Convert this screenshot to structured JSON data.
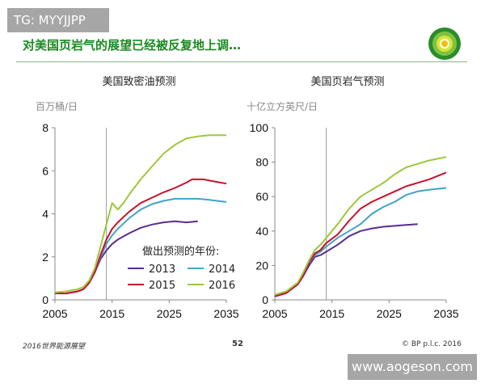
{
  "watermark_top": "TG: MYYJJPP",
  "watermark_bottom": "www.aogeson.com",
  "slide_title": "对美国页岩气的展望已经被反复地上调…",
  "footer": {
    "left": "2016世界能源展望",
    "page": "52",
    "right": "© BP p.l.c. 2016"
  },
  "colors": {
    "2013": "#5b2c8f",
    "2014": "#3fa4c8",
    "2015": "#c8102e",
    "2016": "#9dc73a",
    "title_green": "#1a8a22"
  },
  "chart_data": [
    {
      "type": "line",
      "title": "美国致密油预测",
      "ylabel": "百万桶/日",
      "xlabel": "",
      "xlim": [
        2005,
        2035
      ],
      "ylim": [
        0,
        8
      ],
      "xticks": [
        "2005",
        "2015",
        "2025",
        "2035"
      ],
      "yticks": [
        "0",
        "2",
        "4",
        "6",
        "8"
      ],
      "vline": 2014,
      "legend": {
        "title": "做出预测的年份:",
        "position": "bottom-right"
      },
      "series": [
        {
          "name": "2013",
          "x": [
            2005,
            2007,
            2009,
            2010,
            2011,
            2012,
            2013,
            2014,
            2015,
            2016,
            2018,
            2020,
            2022,
            2024,
            2026,
            2028,
            2030
          ],
          "y": [
            0.3,
            0.3,
            0.4,
            0.5,
            0.8,
            1.3,
            1.9,
            2.3,
            2.6,
            2.8,
            3.1,
            3.35,
            3.5,
            3.6,
            3.65,
            3.6,
            3.65
          ]
        },
        {
          "name": "2014",
          "x": [
            2005,
            2007,
            2009,
            2010,
            2011,
            2012,
            2013,
            2014,
            2015,
            2016,
            2018,
            2020,
            2022,
            2024,
            2026,
            2028,
            2030,
            2032,
            2035
          ],
          "y": [
            0.3,
            0.3,
            0.4,
            0.5,
            0.8,
            1.3,
            2.0,
            2.6,
            3.0,
            3.3,
            3.8,
            4.2,
            4.45,
            4.6,
            4.7,
            4.7,
            4.7,
            4.65,
            4.55
          ]
        },
        {
          "name": "2015",
          "x": [
            2005,
            2007,
            2009,
            2010,
            2011,
            2012,
            2013,
            2014,
            2015,
            2016,
            2018,
            2020,
            2022,
            2024,
            2026,
            2028,
            2029,
            2030,
            2031,
            2033,
            2035
          ],
          "y": [
            0.3,
            0.3,
            0.4,
            0.5,
            0.8,
            1.3,
            2.1,
            2.8,
            3.3,
            3.6,
            4.1,
            4.5,
            4.75,
            5.0,
            5.2,
            5.45,
            5.6,
            5.6,
            5.6,
            5.5,
            5.4
          ]
        },
        {
          "name": "2016",
          "x": [
            2005,
            2007,
            2009,
            2010,
            2011,
            2012,
            2013,
            2014,
            2015,
            2016,
            2017,
            2018,
            2020,
            2022,
            2024,
            2026,
            2028,
            2030,
            2032,
            2035
          ],
          "y": [
            0.35,
            0.4,
            0.5,
            0.6,
            0.9,
            1.5,
            2.5,
            3.5,
            4.5,
            4.2,
            4.5,
            4.9,
            5.6,
            6.2,
            6.8,
            7.2,
            7.5,
            7.6,
            7.65,
            7.65
          ]
        }
      ]
    },
    {
      "type": "line",
      "title": "美国页岩气预测",
      "ylabel": "十亿立方英尺/日",
      "xlabel": "",
      "xlim": [
        2005,
        2035
      ],
      "ylim": [
        0,
        100
      ],
      "xticks": [
        "2005",
        "2015",
        "2025",
        "2035"
      ],
      "yticks": [
        "0",
        "20",
        "40",
        "60",
        "80",
        "100"
      ],
      "vline": 2014,
      "series": [
        {
          "name": "2013",
          "x": [
            2005,
            2007,
            2009,
            2010,
            2011,
            2012,
            2013,
            2014,
            2016,
            2018,
            2020,
            2022,
            2024,
            2026,
            2028,
            2030
          ],
          "y": [
            2,
            4,
            9,
            14,
            20,
            25,
            26,
            28,
            32,
            37,
            40,
            41.5,
            42.5,
            43,
            43.5,
            44
          ]
        },
        {
          "name": "2014",
          "x": [
            2005,
            2007,
            2009,
            2010,
            2011,
            2012,
            2013,
            2014,
            2016,
            2018,
            2020,
            2022,
            2024,
            2026,
            2028,
            2030,
            2032,
            2035
          ],
          "y": [
            2,
            4,
            9,
            14,
            22,
            26,
            28,
            31,
            36,
            40,
            44,
            50,
            54,
            57,
            61,
            63,
            64,
            65
          ]
        },
        {
          "name": "2015",
          "x": [
            2005,
            2007,
            2009,
            2010,
            2011,
            2012,
            2013,
            2014,
            2016,
            2018,
            2020,
            2022,
            2024,
            2026,
            2028,
            2030,
            2032,
            2035
          ],
          "y": [
            2,
            4,
            9,
            14,
            22,
            27,
            29,
            33,
            38,
            46,
            53,
            57,
            60,
            63,
            66,
            68,
            70,
            74
          ]
        },
        {
          "name": "2016",
          "x": [
            2005,
            2007,
            2009,
            2010,
            2011,
            2012,
            2013,
            2014,
            2016,
            2018,
            2020,
            2022,
            2024,
            2026,
            2028,
            2030,
            2032,
            2035
          ],
          "y": [
            3,
            5,
            10,
            16,
            23,
            29,
            32,
            36,
            44,
            53,
            60,
            64,
            68,
            73,
            77,
            79,
            81,
            83
          ]
        }
      ]
    }
  ]
}
